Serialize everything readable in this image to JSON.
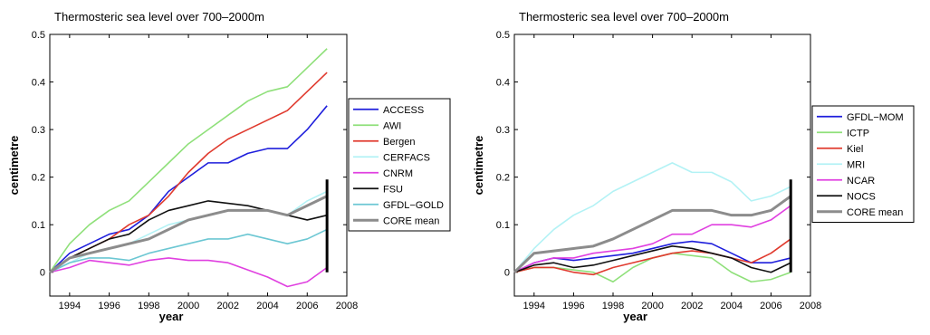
{
  "chart_data": [
    {
      "type": "line",
      "title": "Thermosteric sea level over 700–2000m",
      "xlabel": "year",
      "ylabel": "centimetre",
      "xlim": [
        1993,
        2008
      ],
      "ylim": [
        -0.05,
        0.5
      ],
      "x_ticks": [
        "1994",
        "1996",
        "1998",
        "2000",
        "2002",
        "2004",
        "2006",
        "2008"
      ],
      "y_ticks": [
        "0",
        "0.1",
        "0.2",
        "0.3",
        "0.4",
        "0.5"
      ],
      "legend_position": "right, outside",
      "x": [
        1993,
        1994,
        1995,
        1996,
        1997,
        1998,
        1999,
        2000,
        2001,
        2002,
        2003,
        2004,
        2005,
        2006,
        2007
      ],
      "series": [
        {
          "name": "ACCESS",
          "color": "#1f1fdc",
          "values": [
            0.0,
            0.04,
            0.06,
            0.08,
            0.09,
            0.12,
            0.17,
            0.2,
            0.23,
            0.23,
            0.25,
            0.26,
            0.26,
            0.3,
            0.35
          ]
        },
        {
          "name": "AWI",
          "color": "#8fe07a",
          "values": [
            0.0,
            0.06,
            0.1,
            0.13,
            0.15,
            0.19,
            0.23,
            0.27,
            0.3,
            0.33,
            0.36,
            0.38,
            0.39,
            0.43,
            0.47
          ]
        },
        {
          "name": "Bergen",
          "color": "#e03a2e",
          "values": [
            0.0,
            0.03,
            0.05,
            0.07,
            0.1,
            0.12,
            0.16,
            0.21,
            0.25,
            0.28,
            0.3,
            0.32,
            0.34,
            0.38,
            0.42
          ]
        },
        {
          "name": "CERFACS",
          "color": "#b3f2f5",
          "values": [
            0.0,
            0.02,
            0.04,
            0.05,
            0.06,
            0.08,
            0.1,
            0.11,
            0.12,
            0.13,
            0.13,
            0.13,
            0.12,
            0.15,
            0.17
          ]
        },
        {
          "name": "CNRM",
          "color": "#e040e0",
          "values": [
            0.0,
            0.01,
            0.025,
            0.02,
            0.015,
            0.025,
            0.03,
            0.025,
            0.025,
            0.02,
            0.005,
            -0.01,
            -0.03,
            -0.02,
            0.01
          ]
        },
        {
          "name": "FSU",
          "color": "#101010",
          "values": [
            0.0,
            0.03,
            0.05,
            0.07,
            0.08,
            0.11,
            0.13,
            0.14,
            0.15,
            0.145,
            0.14,
            0.13,
            0.12,
            0.11,
            0.12
          ]
        },
        {
          "name": "GFDL−GOLD",
          "color": "#6cc7d3",
          "values": [
            0.0,
            0.02,
            0.03,
            0.03,
            0.025,
            0.04,
            0.05,
            0.06,
            0.07,
            0.07,
            0.08,
            0.07,
            0.06,
            0.07,
            0.09
          ]
        },
        {
          "name": "CORE mean",
          "color": "#8c8c8c",
          "values": [
            0.0,
            0.03,
            0.04,
            0.05,
            0.06,
            0.07,
            0.09,
            0.11,
            0.12,
            0.13,
            0.13,
            0.13,
            0.12,
            0.14,
            0.16
          ]
        }
      ],
      "error_bar": {
        "x": 2007,
        "low": 0.0,
        "high": 0.195
      }
    },
    {
      "type": "line",
      "title": "Thermosteric sea level over 700–2000m",
      "xlabel": "year",
      "ylabel": "centimetre",
      "xlim": [
        1993,
        2008
      ],
      "ylim": [
        -0.05,
        0.5
      ],
      "x_ticks": [
        "1994",
        "1996",
        "1998",
        "2000",
        "2002",
        "2004",
        "2006",
        "2008"
      ],
      "y_ticks": [
        "0",
        "0.1",
        "0.2",
        "0.3",
        "0.4",
        "0.5"
      ],
      "legend_position": "right, outside",
      "x": [
        1993,
        1994,
        1995,
        1996,
        1997,
        1998,
        1999,
        2000,
        2001,
        2002,
        2003,
        2004,
        2005,
        2006,
        2007
      ],
      "series": [
        {
          "name": "GFDL−MOM",
          "color": "#1f1fdc",
          "values": [
            0.0,
            0.02,
            0.03,
            0.025,
            0.03,
            0.035,
            0.04,
            0.05,
            0.06,
            0.065,
            0.06,
            0.04,
            0.02,
            0.02,
            0.03
          ]
        },
        {
          "name": "ICTP",
          "color": "#8fe07a",
          "values": [
            0.0,
            0.01,
            0.01,
            0.005,
            0.0,
            -0.02,
            0.01,
            0.03,
            0.04,
            0.035,
            0.03,
            0.0,
            -0.02,
            -0.015,
            0.0
          ]
        },
        {
          "name": "Kiel",
          "color": "#e03a2e",
          "values": [
            0.0,
            0.01,
            0.01,
            0.0,
            -0.005,
            0.01,
            0.02,
            0.03,
            0.04,
            0.045,
            0.04,
            0.03,
            0.02,
            0.04,
            0.07
          ]
        },
        {
          "name": "MRI",
          "color": "#b3f2f5",
          "values": [
            0.0,
            0.05,
            0.09,
            0.12,
            0.14,
            0.17,
            0.19,
            0.21,
            0.23,
            0.21,
            0.21,
            0.19,
            0.15,
            0.16,
            0.18
          ]
        },
        {
          "name": "NCAR",
          "color": "#e040e0",
          "values": [
            0.0,
            0.02,
            0.03,
            0.03,
            0.04,
            0.045,
            0.05,
            0.06,
            0.08,
            0.08,
            0.1,
            0.1,
            0.095,
            0.11,
            0.14
          ]
        },
        {
          "name": "NOCS",
          "color": "#101010",
          "values": [
            0.0,
            0.015,
            0.02,
            0.01,
            0.015,
            0.025,
            0.035,
            0.045,
            0.055,
            0.05,
            0.04,
            0.03,
            0.01,
            0.0,
            0.02
          ]
        },
        {
          "name": "CORE mean",
          "color": "#8c8c8c",
          "values": [
            0.0,
            0.04,
            0.045,
            0.05,
            0.055,
            0.07,
            0.09,
            0.11,
            0.13,
            0.13,
            0.13,
            0.12,
            0.12,
            0.13,
            0.16
          ]
        }
      ],
      "error_bar": {
        "x": 2007,
        "low": 0.0,
        "high": 0.195
      }
    }
  ]
}
